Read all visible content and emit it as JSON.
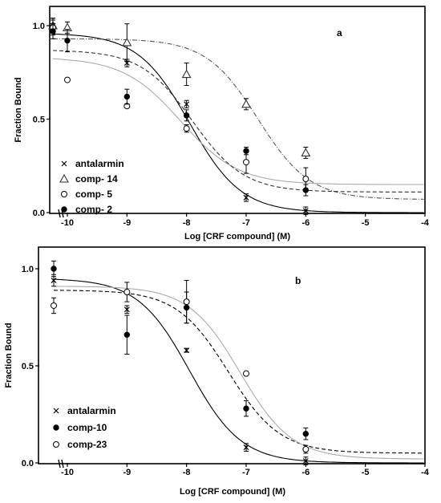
{
  "chart_data": [
    {
      "panel": "a",
      "type": "scatter",
      "xlabel": "Log [CRF compound] (M)",
      "ylabel": "Fraction Bound",
      "xlim": [
        -10.3,
        -4
      ],
      "ylim": [
        0,
        1.05
      ],
      "x_ticks": [
        "-10",
        "-9",
        "-8",
        "-7",
        "-6",
        "-5",
        "-4"
      ],
      "y_ticks": [
        "0.0",
        "0.5",
        "1.0"
      ],
      "legend_position": "bottom-left",
      "series": [
        {
          "name": "antalarmin",
          "marker": "x",
          "line_style": "solid",
          "line_color": "#000000",
          "x": [
            -10.2,
            -9,
            -8,
            -7,
            -6
          ],
          "y": [
            1.0,
            0.8,
            0.58,
            0.08,
            0.01
          ],
          "err": [
            0.04,
            0.02,
            0.02,
            0.02,
            0.02
          ],
          "fit": {
            "top": 0.96,
            "bottom": 0.0,
            "logIC50": -7.95,
            "hill": 1.0
          }
        },
        {
          "name": "comp- 14",
          "marker": "triangle",
          "line_style": "dashdot",
          "line_color": "#555555",
          "x": [
            -10.2,
            -10,
            -9,
            -8,
            -7,
            -6
          ],
          "y": [
            1.0,
            0.99,
            0.91,
            0.74,
            0.58,
            0.32
          ],
          "err": [
            0.04,
            0.03,
            0.1,
            0.06,
            0.03,
            0.03
          ],
          "fit": {
            "top": 0.93,
            "bottom": 0.07,
            "logIC50": -6.8,
            "hill": 1.0
          }
        },
        {
          "name": "comp- 5",
          "marker": "circle-open",
          "line_style": "solid",
          "line_color": "#aaaaaa",
          "x": [
            -10.2,
            -10,
            -9,
            -8,
            -7,
            -6
          ],
          "y": [
            0.99,
            0.71,
            0.57,
            0.45,
            0.27,
            0.18
          ],
          "err": [
            0.04,
            0.01,
            0.01,
            0.02,
            0.06,
            0.06
          ],
          "fit": {
            "top": 0.83,
            "bottom": 0.15,
            "logIC50": -8.1,
            "hill": 0.9
          }
        },
        {
          "name": "comp- 2",
          "marker": "circle-filled",
          "line_style": "dashed",
          "line_color": "#333333",
          "x": [
            -10.2,
            -10,
            -9,
            -8,
            -7,
            -6
          ],
          "y": [
            0.97,
            0.92,
            0.62,
            0.52,
            0.33,
            0.12
          ],
          "err": [
            0.04,
            0.06,
            0.04,
            0.03,
            0.02,
            0.03
          ],
          "fit": {
            "top": 0.87,
            "bottom": 0.11,
            "logIC50": -7.9,
            "hill": 1.0
          }
        }
      ]
    },
    {
      "panel": "b",
      "type": "scatter",
      "xlabel": "Log [CRF compound] (M)",
      "ylabel": "Fraction Bound",
      "xlim": [
        -10.3,
        -4
      ],
      "ylim": [
        0,
        1.05
      ],
      "x_ticks": [
        "-10",
        "-9",
        "-8",
        "-7",
        "-6",
        "-5",
        "-4"
      ],
      "y_ticks": [
        "0.0",
        "0.5",
        "1.0"
      ],
      "legend_position": "bottom-left",
      "series": [
        {
          "name": "antalarmin",
          "marker": "x",
          "line_style": "solid",
          "line_color": "#000000",
          "x": [
            -10.2,
            -9,
            -8,
            -7,
            -6
          ],
          "y": [
            0.94,
            0.79,
            0.58,
            0.08,
            0.01
          ],
          "err": [
            0.03,
            0.02,
            0.01,
            0.02,
            0.02
          ],
          "fit": {
            "top": 0.95,
            "bottom": 0.0,
            "logIC50": -7.95,
            "hill": 1.0
          }
        },
        {
          "name": "comp-10",
          "marker": "circle-filled",
          "line_style": "dashed",
          "line_color": "#000000",
          "x": [
            -10.2,
            -9,
            -8,
            -7,
            -6
          ],
          "y": [
            1.0,
            0.66,
            0.8,
            0.28,
            0.15
          ],
          "err": [
            0.04,
            0.1,
            0.08,
            0.04,
            0.03
          ],
          "fit": {
            "top": 0.89,
            "bottom": 0.05,
            "logIC50": -7.3,
            "hill": 1.0
          }
        },
        {
          "name": "comp-23",
          "marker": "circle-open",
          "line_style": "solid",
          "line_color": "#aaaaaa",
          "x": [
            -10.2,
            -9,
            -8,
            -7,
            -6
          ],
          "y": [
            0.81,
            0.88,
            0.83,
            0.46,
            0.07
          ],
          "err": [
            0.04,
            0.05,
            0.11,
            0.01,
            0.02
          ],
          "fit": {
            "top": 0.91,
            "bottom": 0.02,
            "logIC50": -7.1,
            "hill": 1.0
          }
        }
      ]
    }
  ]
}
